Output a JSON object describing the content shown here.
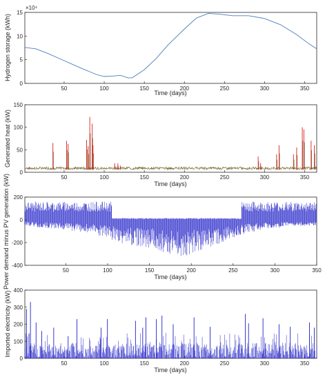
{
  "chart_data": [
    {
      "type": "line",
      "ylabel": "Hydrogen storage (kWh)",
      "xlabel": "Time (days)",
      "y_exponent_label": "×10⁴",
      "xlim": [
        1,
        365
      ],
      "ylim": [
        0,
        15
      ],
      "xticks": [
        50,
        100,
        150,
        200,
        250,
        300,
        350
      ],
      "yticks": [
        0,
        5,
        10,
        15
      ],
      "grid": false,
      "series": [
        {
          "x": [
            1,
            15,
            30,
            50,
            70,
            90,
            100,
            110,
            120,
            130,
            135,
            150,
            165,
            180,
            200,
            215,
            230,
            245,
            260,
            280,
            300,
            320,
            340,
            355,
            365
          ],
          "y": [
            7.6,
            7.3,
            6.3,
            4.8,
            3.3,
            1.9,
            1.45,
            1.55,
            1.7,
            1.15,
            1.2,
            2.9,
            5.3,
            8.2,
            11.5,
            13.8,
            14.8,
            14.6,
            14.3,
            14.3,
            13.7,
            12.4,
            10.3,
            8.4,
            7.3
          ],
          "color": "#4a7ebb"
        }
      ]
    },
    {
      "type": "line",
      "ylabel": "Generated heat (kW)",
      "xlabel": "Time (days)",
      "xlim": [
        1,
        365
      ],
      "ylim": [
        0,
        150
      ],
      "xticks": [
        50,
        100,
        150,
        200,
        250,
        300,
        350
      ],
      "yticks": [
        0,
        50,
        100,
        150
      ],
      "grid": false,
      "series": [
        {
          "note_color": "red",
          "color": "#d62020",
          "baseline": 9,
          "spikes": [
            [
              36,
              65
            ],
            [
              53,
              70
            ],
            [
              55,
              63
            ],
            [
              78,
              72
            ],
            [
              80,
              58
            ],
            [
              82,
              123
            ],
            [
              85,
              108
            ],
            [
              86,
              60
            ],
            [
              113,
              20
            ],
            [
              117,
              20
            ],
            [
              120,
              15
            ],
            [
              292,
              35
            ],
            [
              295,
              20
            ],
            [
              315,
              40
            ],
            [
              318,
              60
            ],
            [
              336,
              40
            ],
            [
              340,
              55
            ],
            [
              347,
              100
            ],
            [
              349,
              95
            ],
            [
              358,
              70
            ],
            [
              362,
              60
            ]
          ]
        },
        {
          "color": "#6b5a1e",
          "baseline": 6
        }
      ]
    },
    {
      "type": "line",
      "ylabel": "Power demand minus PV generation (kW)",
      "xlabel": "Time (days)",
      "xlim": [
        1,
        350
      ],
      "ylim": [
        -400,
        200
      ],
      "xticks": [
        50,
        100,
        150,
        200,
        250,
        300,
        350
      ],
      "yticks": [
        -400,
        -200,
        0,
        200
      ],
      "grid": false,
      "series": [
        {
          "color": "#2020c8",
          "upper": 160,
          "lower_envelope": [
            [
              0,
              -60
            ],
            [
              40,
              -80
            ],
            [
              80,
              -120
            ],
            [
              110,
              -200
            ],
            [
              150,
              -250
            ],
            [
              190,
              -330
            ],
            [
              215,
              -260
            ],
            [
              240,
              -200
            ],
            [
              260,
              -130
            ],
            [
              290,
              -80
            ],
            [
              320,
              -60
            ],
            [
              350,
              -50
            ]
          ]
        }
      ]
    },
    {
      "type": "line",
      "ylabel": "Imported electricity (kW)",
      "xlabel": "Time (days)",
      "xlim": [
        1,
        365
      ],
      "ylim": [
        0,
        400
      ],
      "xticks": [
        50,
        100,
        150,
        200,
        250,
        300,
        350
      ],
      "yticks": [
        0,
        100,
        200,
        300,
        400
      ],
      "grid": false,
      "series": [
        {
          "color": "#2020c8",
          "spikes": [
            [
              3,
              290
            ],
            [
              8,
              330
            ],
            [
              15,
              210
            ],
            [
              22,
              160
            ],
            [
              37,
              180
            ],
            [
              55,
              130
            ],
            [
              66,
              230
            ],
            [
              96,
              180
            ],
            [
              104,
              230
            ],
            [
              139,
              220
            ],
            [
              148,
              180
            ],
            [
              152,
              240
            ],
            [
              165,
              230
            ],
            [
              172,
              250
            ],
            [
              186,
              200
            ],
            [
              212,
              240
            ],
            [
              232,
              185
            ],
            [
              276,
              260
            ],
            [
              280,
              205
            ],
            [
              298,
              235
            ],
            [
              318,
              200
            ],
            [
              332,
              185
            ],
            [
              356,
              210
            ],
            [
              362,
              180
            ]
          ]
        }
      ]
    }
  ]
}
